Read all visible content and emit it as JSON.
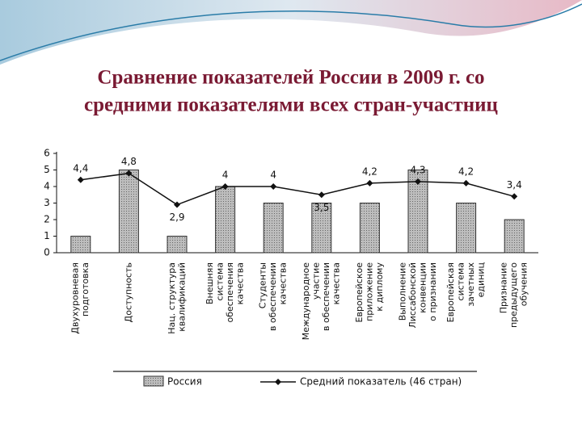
{
  "chart_data": {
    "type": "bar_line",
    "title": [
      "Сравнение показателей России в 2009 г. со",
      "средними показателями всех стран-участниц"
    ],
    "categories": [
      [
        "Двухуровневая",
        "подготовка"
      ],
      [
        "Доступность"
      ],
      [
        "Нац. структура",
        "квалификаций"
      ],
      [
        "Внешняя",
        "система",
        "обеспечения",
        "качества"
      ],
      [
        "Студенты",
        "в обеспечении",
        "качества"
      ],
      [
        "Международное",
        "участие",
        "в обеспечении",
        "качества"
      ],
      [
        "Европейское",
        "приложение",
        "к диплому"
      ],
      [
        "Выполнение",
        "Лиссабонской",
        "конвенции",
        "о признании"
      ],
      [
        "Европейская",
        "система",
        "зачетных",
        "единиц"
      ],
      [
        "Признание",
        "предыдущего",
        "обучения"
      ]
    ],
    "series": [
      {
        "name": "Россия",
        "kind": "bar",
        "color": "#a8a8a8",
        "values": [
          1,
          5,
          1,
          4,
          3,
          3,
          3,
          5,
          3,
          2
        ]
      },
      {
        "name": "Средний показатель (46 стран)",
        "kind": "line",
        "color": "#111111",
        "values": [
          4.4,
          4.8,
          2.9,
          4,
          4,
          3.5,
          4.2,
          4.3,
          4.2,
          3.4
        ],
        "value_labels": [
          "4,4",
          "4,8",
          "2,9",
          "4",
          "4",
          "3,5",
          "4,2",
          "4,3",
          "4,2",
          "3,4"
        ]
      }
    ],
    "ylim": [
      0,
      6
    ],
    "yticks": [
      0,
      1,
      2,
      3,
      4,
      5,
      6
    ],
    "legend": "bottom"
  }
}
